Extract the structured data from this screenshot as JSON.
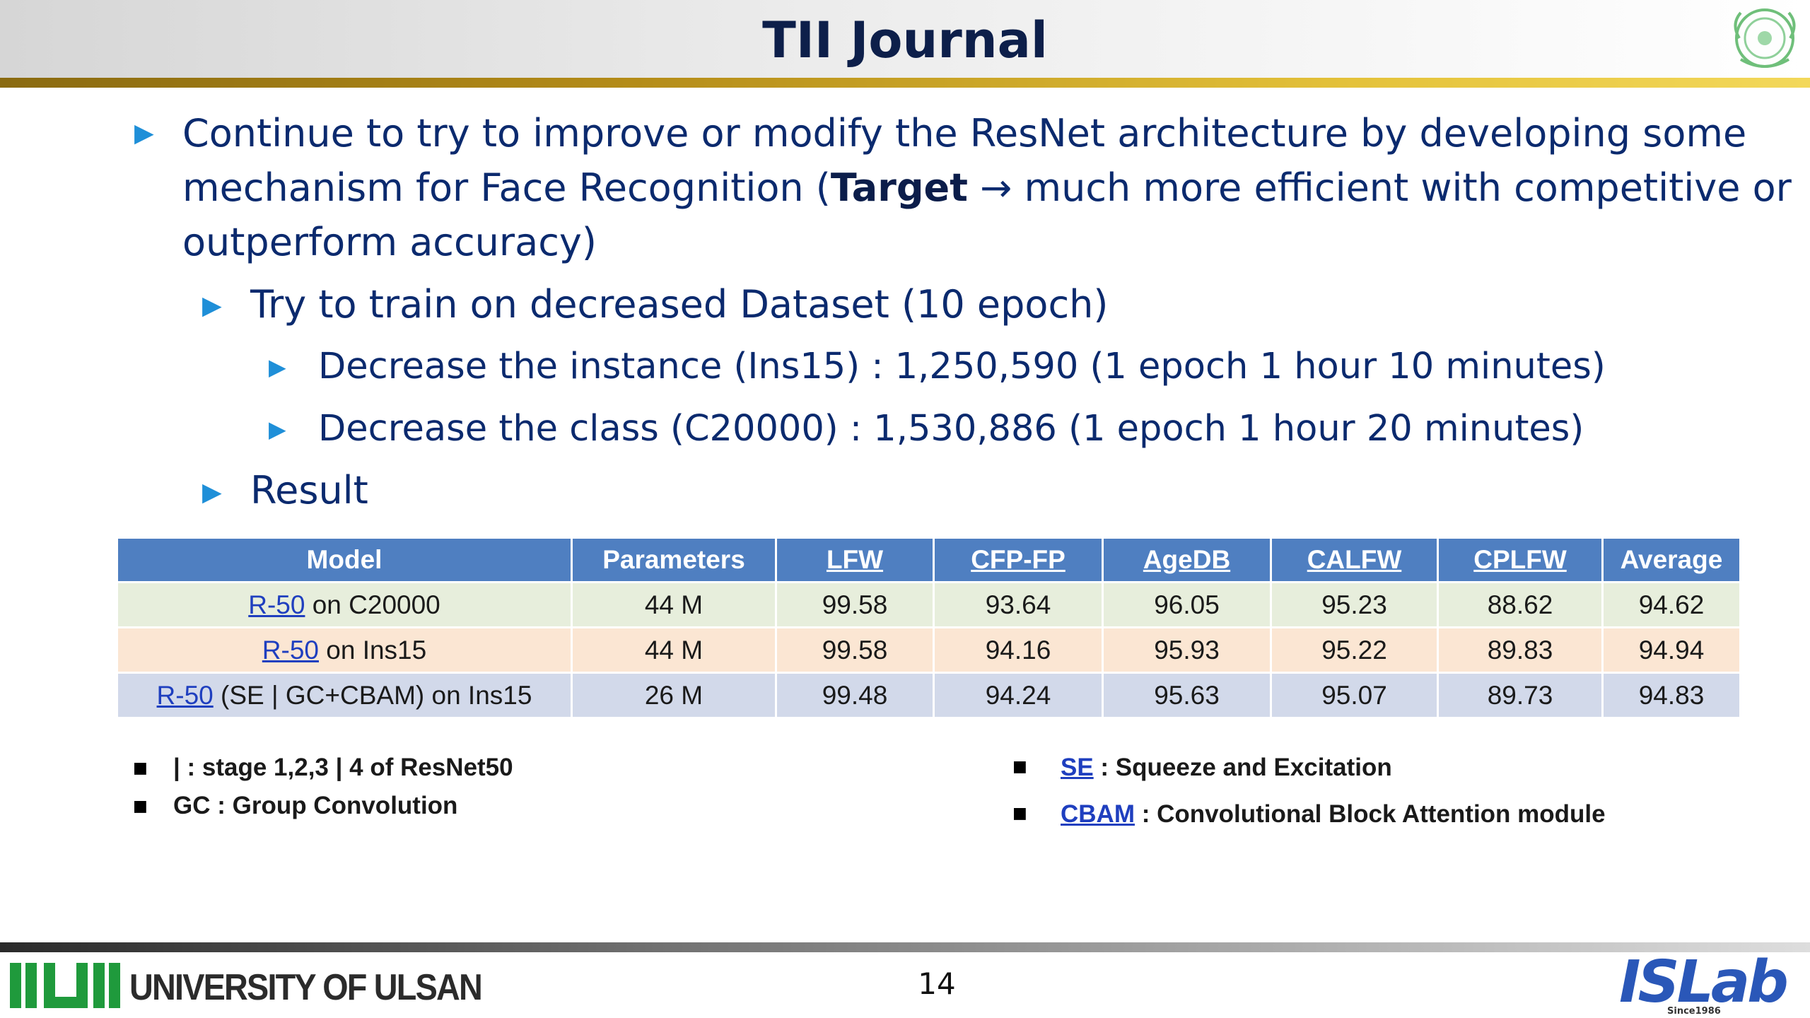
{
  "header": {
    "title": "TII Journal",
    "seal_icon": "university-seal-icon"
  },
  "bullets": [
    {
      "level": 1,
      "parts": [
        "Continue to try to improve or modify the ResNet architecture by developing some",
        "mechanism for Face Recognition (",
        "Target",
        " → much more efficient with competitive or",
        "outperform accuracy)"
      ]
    },
    {
      "level": 2,
      "text": "Try to train on decreased Dataset (10 epoch)"
    },
    {
      "level": 3,
      "text": "Decrease the instance (Ins15) : 1,250,590 (1 epoch 1 hour 10 minutes)"
    },
    {
      "level": 3,
      "text": "Decrease the class (C20000) : 1,530,886 (1 epoch 1 hour 20 minutes)"
    },
    {
      "level": 2,
      "text": "Result"
    }
  ],
  "table": {
    "headers": [
      "Model",
      "Parameters",
      "LFW",
      "CFP-FP",
      "AgeDB",
      "CALFW",
      "CPLFW",
      "Average"
    ],
    "rows": [
      {
        "model_link": "R-50",
        "model_rest": " on C20000",
        "cells": [
          "44 M",
          "99.58",
          "93.64",
          "96.05",
          "95.23",
          "88.62",
          "94.62"
        ]
      },
      {
        "model_link": "R-50",
        "model_rest": " on Ins15",
        "cells": [
          "44 M",
          "99.58",
          "94.16",
          "95.93",
          "95.22",
          "89.83",
          "94.94"
        ]
      },
      {
        "model_link": "R-50",
        "model_rest": " (SE | GC+CBAM) on Ins15",
        "cells": [
          "26 M",
          "99.48",
          "94.24",
          "95.63",
          "95.07",
          "89.73",
          "94.83"
        ]
      }
    ]
  },
  "notes_left": [
    {
      "text": "| : stage 1,2,3 | 4 of ResNet50"
    },
    {
      "text": "GC : Group Convolution"
    }
  ],
  "notes_right": [
    {
      "link": "SE",
      "text": " : Squeeze and Excitation"
    },
    {
      "link": "CBAM",
      "text": " : Convolutional Block Attention module"
    }
  ],
  "footer": {
    "university": "UNIVERSITY OF ULSAN",
    "page_number": "14",
    "lab": "ISLab",
    "lab_sub": "Since1986"
  }
}
